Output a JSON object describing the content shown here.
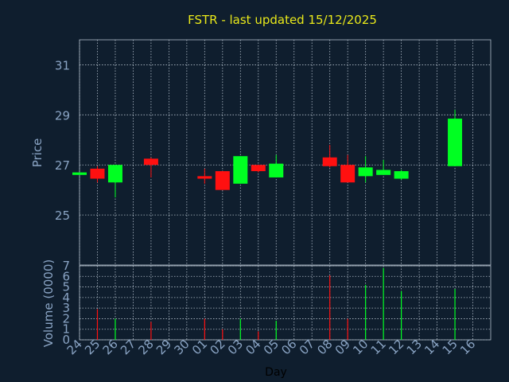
{
  "chart_data": {
    "type": "candlestick",
    "title": "FSTR - last updated 15/12/2025",
    "colors": {
      "background": "#0f1e2e",
      "grid": "#b0bcc8",
      "axis_text": "#8aa4c4",
      "title": "#e8e81a",
      "up": "#00ff22",
      "down": "#ff1010",
      "xlabel": "#000000"
    },
    "price_panel": {
      "ylabel": "Price",
      "ylim": [
        23.0,
        32.0
      ],
      "yticks": [
        25,
        27,
        29,
        31
      ]
    },
    "volume_panel": {
      "ylabel": "Volume (0000)",
      "ylim": [
        0,
        7
      ],
      "yticks": [
        0,
        1,
        2,
        3,
        4,
        5,
        6,
        7
      ]
    },
    "xlabel": "Day",
    "x_tick_labels": [
      "24",
      "25",
      "26",
      "27",
      "28",
      "29",
      "30",
      "01",
      "02",
      "03",
      "04",
      "05",
      "06",
      "07",
      "08",
      "09",
      "10",
      "11",
      "12",
      "13",
      "14",
      "15",
      "16"
    ],
    "candles": [
      {
        "day": "24",
        "open": 26.6,
        "high": 26.7,
        "low": 26.6,
        "close": 26.7,
        "volume": 0.0
      },
      {
        "day": "25",
        "open": 26.85,
        "high": 26.95,
        "low": 26.3,
        "close": 26.45,
        "volume": 2.9
      },
      {
        "day": "26",
        "open": 26.3,
        "high": 27.0,
        "low": 25.7,
        "close": 27.0,
        "volume": 2.0
      },
      {
        "day": "28",
        "open": 27.25,
        "high": 27.3,
        "low": 26.5,
        "close": 27.0,
        "volume": 1.7
      },
      {
        "day": "01",
        "open": 26.55,
        "high": 26.85,
        "low": 26.25,
        "close": 26.45,
        "volume": 2.0
      },
      {
        "day": "02",
        "open": 26.75,
        "high": 26.75,
        "low": 26.0,
        "close": 26.0,
        "volume": 1.0
      },
      {
        "day": "03",
        "open": 26.25,
        "high": 27.35,
        "low": 26.25,
        "close": 27.35,
        "volume": 2.0
      },
      {
        "day": "04",
        "open": 27.0,
        "high": 27.0,
        "low": 26.7,
        "close": 26.75,
        "volume": 0.8
      },
      {
        "day": "05",
        "open": 26.5,
        "high": 27.4,
        "low": 26.5,
        "close": 27.05,
        "volume": 1.8
      },
      {
        "day": "08",
        "open": 27.3,
        "high": 27.8,
        "low": 26.9,
        "close": 26.95,
        "volume": 6.1
      },
      {
        "day": "09",
        "open": 27.0,
        "high": 27.4,
        "low": 26.3,
        "close": 26.3,
        "volume": 2.0
      },
      {
        "day": "10",
        "open": 26.55,
        "high": 27.35,
        "low": 26.3,
        "close": 26.9,
        "volume": 5.2
      },
      {
        "day": "11",
        "open": 26.6,
        "high": 27.2,
        "low": 26.6,
        "close": 26.8,
        "volume": 6.8
      },
      {
        "day": "12",
        "open": 26.45,
        "high": 26.8,
        "low": 26.4,
        "close": 26.75,
        "volume": 4.6
      },
      {
        "day": "15",
        "open": 26.95,
        "high": 29.2,
        "low": 26.95,
        "close": 28.85,
        "volume": 4.8
      }
    ]
  }
}
